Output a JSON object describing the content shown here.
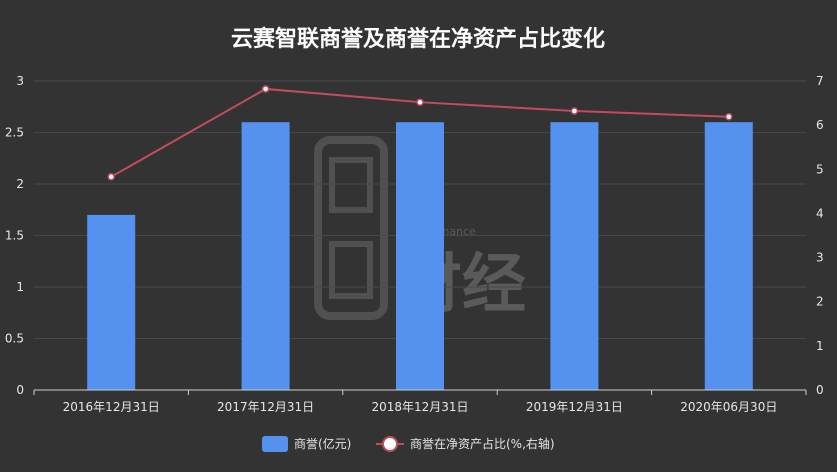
{
  "chart_data": {
    "type": "bar",
    "title": "云赛智联商誉及商誉在净资产占比变化",
    "categories": [
      "2016年12月31日",
      "2017年12月31日",
      "2018年12月31日",
      "2019年12月31日",
      "2020年06月30日"
    ],
    "series": [
      {
        "name": "商誉(亿元)",
        "type": "bar",
        "axis": "left",
        "color": "#5592f0",
        "values": [
          1.7,
          2.6,
          2.6,
          2.6,
          2.6
        ]
      },
      {
        "name": "商誉在净资产占比(%,右轴)",
        "type": "line",
        "axis": "right",
        "color": "#c34b5f",
        "values": [
          4.83,
          6.82,
          6.52,
          6.32,
          6.19
        ]
      }
    ],
    "y_left": {
      "range": [
        0,
        3
      ],
      "ticks": [
        "0",
        "0.5",
        "1",
        "1.5",
        "2",
        "2.5",
        "3"
      ]
    },
    "y_right": {
      "range": [
        0,
        7
      ],
      "ticks": [
        "0",
        "1",
        "2",
        "3",
        "4",
        "5",
        "6",
        "7"
      ]
    },
    "grid": true,
    "legend_position": "bottom",
    "watermark": {
      "text": "Bread Finance",
      "brand": "财经"
    }
  }
}
